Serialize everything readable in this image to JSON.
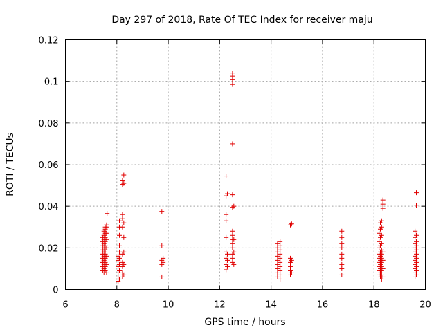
{
  "chart_data": {
    "type": "scatter",
    "title": "Day 297 of 2018, Rate Of TEC Index for receiver maju",
    "xlabel": "GPS time / hours",
    "ylabel": "ROTI / TECUs",
    "xlim": [
      6,
      20
    ],
    "ylim": [
      0,
      0.12
    ],
    "xticks": [
      6,
      8,
      10,
      12,
      14,
      16,
      18,
      20
    ],
    "yticks": [
      0,
      0.02,
      0.04,
      0.06,
      0.08,
      0.1,
      0.12
    ],
    "xtick_labels": [
      "6",
      "8",
      "10",
      "12",
      "14",
      "16",
      "18",
      "20"
    ],
    "ytick_labels": [
      "0",
      "0.02",
      "0.04",
      "0.06",
      "0.08",
      "0.1",
      "0.12"
    ],
    "grid": true,
    "marker": "+",
    "color": "#e00000",
    "series": [
      {
        "name": "ROTI",
        "points": [
          [
            7.45,
            0.009
          ],
          [
            7.45,
            0.011
          ],
          [
            7.45,
            0.013
          ],
          [
            7.45,
            0.015
          ],
          [
            7.45,
            0.017
          ],
          [
            7.45,
            0.019
          ],
          [
            7.45,
            0.021
          ],
          [
            7.45,
            0.023
          ],
          [
            7.45,
            0.025
          ],
          [
            7.5,
            0.008
          ],
          [
            7.5,
            0.01
          ],
          [
            7.5,
            0.012
          ],
          [
            7.5,
            0.014
          ],
          [
            7.5,
            0.016
          ],
          [
            7.5,
            0.018
          ],
          [
            7.5,
            0.02
          ],
          [
            7.5,
            0.022
          ],
          [
            7.5,
            0.024
          ],
          [
            7.5,
            0.026
          ],
          [
            7.5,
            0.028
          ],
          [
            7.55,
            0.009
          ],
          [
            7.55,
            0.011
          ],
          [
            7.55,
            0.013
          ],
          [
            7.55,
            0.015
          ],
          [
            7.55,
            0.017
          ],
          [
            7.55,
            0.019
          ],
          [
            7.55,
            0.021
          ],
          [
            7.55,
            0.023
          ],
          [
            7.55,
            0.025
          ],
          [
            7.55,
            0.027
          ],
          [
            7.55,
            0.029
          ],
          [
            7.55,
            0.03
          ],
          [
            7.6,
            0.008
          ],
          [
            7.6,
            0.012
          ],
          [
            7.6,
            0.016
          ],
          [
            7.6,
            0.02
          ],
          [
            7.6,
            0.024
          ],
          [
            7.6,
            0.027
          ],
          [
            7.6,
            0.03
          ],
          [
            7.6,
            0.031
          ],
          [
            7.62,
            0.0365
          ],
          [
            8.05,
            0.004
          ],
          [
            8.05,
            0.006
          ],
          [
            8.05,
            0.008
          ],
          [
            8.05,
            0.011
          ],
          [
            8.05,
            0.014
          ],
          [
            8.05,
            0.016
          ],
          [
            8.1,
            0.005
          ],
          [
            8.1,
            0.009
          ],
          [
            8.1,
            0.012
          ],
          [
            8.1,
            0.015
          ],
          [
            8.1,
            0.018
          ],
          [
            8.1,
            0.021
          ],
          [
            8.1,
            0.026
          ],
          [
            8.1,
            0.03
          ],
          [
            8.1,
            0.033
          ],
          [
            8.22,
            0.006
          ],
          [
            8.22,
            0.008
          ],
          [
            8.22,
            0.011
          ],
          [
            8.22,
            0.013
          ],
          [
            8.22,
            0.017
          ],
          [
            8.22,
            0.03
          ],
          [
            8.22,
            0.034
          ],
          [
            8.22,
            0.036
          ],
          [
            8.22,
            0.0505
          ],
          [
            8.22,
            0.0525
          ],
          [
            8.27,
            0.007
          ],
          [
            8.27,
            0.012
          ],
          [
            8.27,
            0.018
          ],
          [
            8.27,
            0.025
          ],
          [
            8.27,
            0.032
          ],
          [
            8.27,
            0.051
          ],
          [
            8.27,
            0.055
          ],
          [
            9.75,
            0.006
          ],
          [
            9.75,
            0.012
          ],
          [
            9.75,
            0.014
          ],
          [
            9.75,
            0.021
          ],
          [
            9.75,
            0.0375
          ],
          [
            9.8,
            0.013
          ],
          [
            9.8,
            0.015
          ],
          [
            12.25,
            0.0095
          ],
          [
            12.25,
            0.012
          ],
          [
            12.25,
            0.015
          ],
          [
            12.25,
            0.018
          ],
          [
            12.25,
            0.025
          ],
          [
            12.25,
            0.033
          ],
          [
            12.25,
            0.036
          ],
          [
            12.25,
            0.045
          ],
          [
            12.25,
            0.0545
          ],
          [
            12.3,
            0.011
          ],
          [
            12.3,
            0.014
          ],
          [
            12.3,
            0.017
          ],
          [
            12.3,
            0.046
          ],
          [
            12.5,
            0.013
          ],
          [
            12.5,
            0.015
          ],
          [
            12.5,
            0.017
          ],
          [
            12.5,
            0.02
          ],
          [
            12.5,
            0.022
          ],
          [
            12.5,
            0.024
          ],
          [
            12.5,
            0.026
          ],
          [
            12.5,
            0.028
          ],
          [
            12.5,
            0.0395
          ],
          [
            12.5,
            0.0455
          ],
          [
            12.5,
            0.07
          ],
          [
            12.5,
            0.0985
          ],
          [
            12.5,
            0.101
          ],
          [
            12.5,
            0.1025
          ],
          [
            12.5,
            0.104
          ],
          [
            12.55,
            0.012
          ],
          [
            12.55,
            0.018
          ],
          [
            12.55,
            0.024
          ],
          [
            12.55,
            0.04
          ],
          [
            14.25,
            0.006
          ],
          [
            14.25,
            0.008
          ],
          [
            14.25,
            0.01
          ],
          [
            14.25,
            0.012
          ],
          [
            14.25,
            0.014
          ],
          [
            14.25,
            0.016
          ],
          [
            14.25,
            0.018
          ],
          [
            14.25,
            0.02
          ],
          [
            14.25,
            0.022
          ],
          [
            14.35,
            0.005
          ],
          [
            14.35,
            0.007
          ],
          [
            14.35,
            0.009
          ],
          [
            14.35,
            0.011
          ],
          [
            14.35,
            0.013
          ],
          [
            14.35,
            0.015
          ],
          [
            14.35,
            0.017
          ],
          [
            14.35,
            0.019
          ],
          [
            14.35,
            0.021
          ],
          [
            14.35,
            0.023
          ],
          [
            14.75,
            0.007
          ],
          [
            14.75,
            0.009
          ],
          [
            14.75,
            0.011
          ],
          [
            14.75,
            0.013
          ],
          [
            14.75,
            0.015
          ],
          [
            14.75,
            0.031
          ],
          [
            14.8,
            0.008
          ],
          [
            14.8,
            0.014
          ],
          [
            14.8,
            0.0315
          ],
          [
            16.75,
            0.007
          ],
          [
            16.75,
            0.01
          ],
          [
            16.75,
            0.012
          ],
          [
            16.75,
            0.015
          ],
          [
            16.75,
            0.017
          ],
          [
            16.75,
            0.02
          ],
          [
            16.75,
            0.022
          ],
          [
            16.75,
            0.025
          ],
          [
            16.75,
            0.028
          ],
          [
            18.2,
            0.007
          ],
          [
            18.2,
            0.009
          ],
          [
            18.2,
            0.011
          ],
          [
            18.2,
            0.013
          ],
          [
            18.2,
            0.015
          ],
          [
            18.2,
            0.017
          ],
          [
            18.2,
            0.02
          ],
          [
            18.2,
            0.023
          ],
          [
            18.2,
            0.027
          ],
          [
            18.25,
            0.006
          ],
          [
            18.25,
            0.008
          ],
          [
            18.25,
            0.01
          ],
          [
            18.25,
            0.012
          ],
          [
            18.25,
            0.014
          ],
          [
            18.25,
            0.016
          ],
          [
            18.25,
            0.018
          ],
          [
            18.25,
            0.021
          ],
          [
            18.25,
            0.025
          ],
          [
            18.25,
            0.029
          ],
          [
            18.25,
            0.032
          ],
          [
            18.3,
            0.005
          ],
          [
            18.3,
            0.007
          ],
          [
            18.3,
            0.009
          ],
          [
            18.3,
            0.011
          ],
          [
            18.3,
            0.013
          ],
          [
            18.3,
            0.015
          ],
          [
            18.3,
            0.017
          ],
          [
            18.3,
            0.019
          ],
          [
            18.3,
            0.022
          ],
          [
            18.3,
            0.026
          ],
          [
            18.3,
            0.03
          ],
          [
            18.3,
            0.033
          ],
          [
            18.35,
            0.006
          ],
          [
            18.35,
            0.01
          ],
          [
            18.35,
            0.014
          ],
          [
            18.35,
            0.018
          ],
          [
            18.35,
            0.039
          ],
          [
            18.35,
            0.041
          ],
          [
            18.35,
            0.043
          ],
          [
            19.6,
            0.006
          ],
          [
            19.6,
            0.008
          ],
          [
            19.6,
            0.01
          ],
          [
            19.6,
            0.012
          ],
          [
            19.6,
            0.014
          ],
          [
            19.6,
            0.016
          ],
          [
            19.6,
            0.018
          ],
          [
            19.6,
            0.02
          ],
          [
            19.6,
            0.022
          ],
          [
            19.6,
            0.025
          ],
          [
            19.6,
            0.028
          ],
          [
            19.65,
            0.007
          ],
          [
            19.65,
            0.009
          ],
          [
            19.65,
            0.011
          ],
          [
            19.65,
            0.013
          ],
          [
            19.65,
            0.015
          ],
          [
            19.65,
            0.017
          ],
          [
            19.65,
            0.019
          ],
          [
            19.65,
            0.021
          ],
          [
            19.65,
            0.023
          ],
          [
            19.65,
            0.026
          ],
          [
            19.65,
            0.0405
          ],
          [
            19.65,
            0.0465
          ]
        ]
      }
    ]
  }
}
